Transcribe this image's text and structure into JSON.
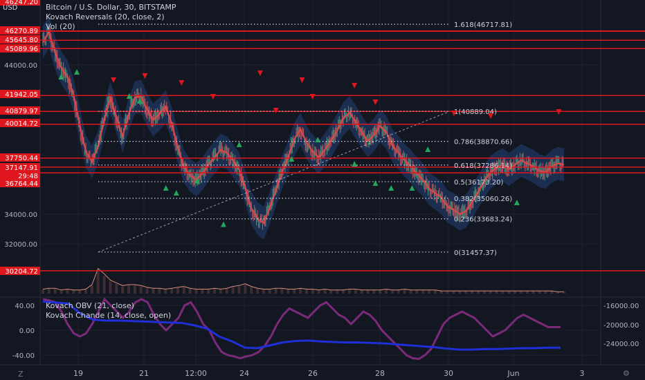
{
  "header": {
    "currency": "USD",
    "symbol_line": "Bitcoin / U.S. Dollar, 30, BITSTAMP",
    "indicator_1": "Kovach Reversals (20, close, 2)",
    "indicator_2": "Vol (20)"
  },
  "lower_pane": {
    "indicator_1": "Kovach OBV (21, close)",
    "indicator_2": "Kovach Chande (14, close, open)",
    "left_ticks": [
      "40.00",
      "0.00",
      "-40.00"
    ],
    "right_ticks": [
      "-16000.00",
      "-20000.00",
      "-24000.00"
    ]
  },
  "footer": {
    "left_icon": "Z",
    "right_icon": "⚙"
  },
  "chart_data": {
    "type": "line",
    "symbol": "Bitcoin / U.S. Dollar",
    "interval": "30",
    "exchange": "BITSTAMP",
    "ylim": [
      30200,
      48250
    ],
    "y_ticks": [
      {
        "label": "44000.00",
        "value": 44000
      },
      {
        "label": "34000.00",
        "value": 34000
      },
      {
        "label": "32000.00",
        "value": 32000
      }
    ],
    "x_ticks": [
      "19",
      "21",
      "12:00",
      "24",
      "26",
      "28",
      "30",
      "Jun",
      "3"
    ],
    "price_lines": [
      {
        "label": "46247.20",
        "value": 46247.2
      },
      {
        "label": "46270.89",
        "value": 46270.89
      },
      {
        "label": "45645.80",
        "value": 45645.8
      },
      {
        "label": "45089.96",
        "value": 45089.96
      },
      {
        "label": "41942.05",
        "value": 41942.05
      },
      {
        "label": "40879.97",
        "value": 40879.97
      },
      {
        "label": "40014.72",
        "value": 40014.72
      },
      {
        "label": "37750.44",
        "value": 37750.44
      },
      {
        "label": "37147.91",
        "value": 37147.91
      },
      {
        "label": "36764.44",
        "value": 36764.44
      },
      {
        "label": "30204.72",
        "value": 30204.72
      }
    ],
    "countdown_label": "29:48",
    "fibonacci": [
      {
        "label": "1.618(46717.81)",
        "value": 46717.81
      },
      {
        "label": "1(40889.04)",
        "value": 40889.04
      },
      {
        "label": "0.786(38870.66)",
        "value": 38870.66
      },
      {
        "label": "0.618(37286.14)",
        "value": 37286.14
      },
      {
        "label": "0.5(36173.20)",
        "value": 36173.2
      },
      {
        "label": "0.382(35060.26)",
        "value": 35060.26
      },
      {
        "label": "0.236(33683.24)",
        "value": 33683.24
      },
      {
        "label": "0(31457.37)",
        "value": 31457.37
      }
    ],
    "price_series": [
      45500,
      46200,
      44800,
      43800,
      43200,
      42000,
      40000,
      38200,
      37500,
      38500,
      40300,
      41800,
      40500,
      39200,
      40700,
      41800,
      41900,
      41000,
      40300,
      40700,
      41200,
      40100,
      38500,
      37200,
      36600,
      36300,
      36700,
      37300,
      37800,
      38300,
      38100,
      37600,
      37000,
      35800,
      34400,
      33700,
      33400,
      34400,
      35600,
      36800,
      37800,
      39000,
      39700,
      38800,
      38200,
      37800,
      38300,
      38900,
      39600,
      40400,
      40800,
      40200,
      39500,
      38900,
      39300,
      39900,
      39500,
      38600,
      38100,
      37600,
      37200,
      36700,
      36300,
      35700,
      35400,
      35100,
      34500,
      34300,
      34000,
      34200,
      34800,
      35500,
      36200,
      36800,
      37100,
      37300,
      37000,
      37300,
      37600,
      37400,
      37200,
      36900,
      36800,
      37200,
      37400,
      37300
    ],
    "volume_series": [
      0.5,
      0.6,
      0.6,
      0.4,
      0.5,
      0.4,
      0.4,
      0.5,
      1,
      2.8,
      2.2,
      1.5,
      1.2,
      0.9,
      1,
      1,
      0.9,
      0.7,
      0.6,
      0.6,
      0.5,
      0.6,
      0.7,
      0.8,
      0.6,
      0.5,
      0.5,
      0.5,
      0.6,
      0.5,
      0.6,
      0.8,
      0.9,
      1.1,
      0.8,
      0.6,
      0.5,
      0.5,
      0.6,
      0.6,
      0.5,
      0.5,
      0.6,
      0.5,
      0.5,
      0.4,
      0.5,
      0.4,
      0.4,
      0.4,
      0.5,
      0.5,
      0.4,
      0.4,
      0.4,
      0.4,
      0.5,
      0.4,
      0.4,
      0.5,
      0.4,
      0.4,
      0.4,
      0.4,
      0.4,
      0.3,
      0.3,
      0.3,
      0.3,
      0.3,
      0.3,
      0.3,
      0.3,
      0.3,
      0.3,
      0.3,
      0.3,
      0.3,
      0.3,
      0.3,
      0.3,
      0.3,
      0.3,
      0.3,
      0.2,
      0.2
    ],
    "chande_series": [
      50,
      48,
      45,
      30,
      10,
      -5,
      -10,
      -5,
      10,
      30,
      50,
      40,
      30,
      20,
      30,
      45,
      50,
      45,
      25,
      10,
      0,
      10,
      20,
      40,
      45,
      30,
      10,
      0,
      -20,
      -35,
      -40,
      -42,
      -45,
      -42,
      -40,
      -35,
      -25,
      -10,
      10,
      25,
      35,
      30,
      25,
      20,
      30,
      40,
      45,
      35,
      25,
      20,
      10,
      20,
      30,
      25,
      15,
      0,
      -10,
      -20,
      -30,
      -40,
      -45,
      -46,
      -40,
      -30,
      -10,
      10,
      20,
      25,
      30,
      25,
      20,
      10,
      0,
      -10,
      -5,
      0,
      10,
      20,
      25,
      20,
      15,
      10,
      5,
      5,
      5
    ],
    "obv_series": [
      -15200,
      -15400,
      -15600,
      -17800,
      -19000,
      -19200,
      -19200,
      -19300,
      -19400,
      -19500,
      -19600,
      -19700,
      -20200,
      -20900,
      -22600,
      -23600,
      -24900,
      -25000,
      -24400,
      -23800,
      -23500,
      -23400,
      -23600,
      -23700,
      -23800,
      -23800,
      -23900,
      -24000,
      -24200,
      -24400,
      -24600,
      -24800,
      -25100,
      -25300,
      -25300,
      -25200,
      -25200,
      -25100,
      -25000,
      -25000,
      -24900,
      -24900
    ],
    "reversal_up": [
      [
        0.04,
        0.26
      ],
      [
        0.07,
        0.24
      ],
      [
        0.17,
        0.34
      ],
      [
        0.19,
        0.36
      ],
      [
        0.24,
        0.72
      ],
      [
        0.26,
        0.74
      ],
      [
        0.3,
        0.69
      ],
      [
        0.35,
        0.87
      ],
      [
        0.38,
        0.54
      ],
      [
        0.48,
        0.6
      ],
      [
        0.53,
        0.52
      ],
      [
        0.6,
        0.62
      ],
      [
        0.64,
        0.7
      ],
      [
        0.67,
        0.72
      ],
      [
        0.71,
        0.72
      ],
      [
        0.74,
        0.56
      ],
      [
        0.91,
        0.78
      ]
    ],
    "reversal_down": [
      [
        0.14,
        0.48
      ],
      [
        0.2,
        0.45
      ],
      [
        0.27,
        0.5
      ],
      [
        0.33,
        0.6
      ],
      [
        0.42,
        0.43
      ],
      [
        0.45,
        0.7
      ],
      [
        0.5,
        0.48
      ],
      [
        0.52,
        0.6
      ],
      [
        0.6,
        0.52
      ],
      [
        0.64,
        0.64
      ],
      [
        0.79,
        0.72
      ],
      [
        0.86,
        0.74
      ],
      [
        0.99,
        0.71
      ]
    ]
  },
  "colors": {
    "background": "#131722",
    "grid": "#1e222d",
    "axis_text": "#b2b5be",
    "price_line": "#e0161e",
    "price_tag_bg": "#e0161e",
    "fib_line": "#d1d4dc",
    "ma_line": "#e04848",
    "band_fill": "#1f3358",
    "up_marker": "#26a65b",
    "down_marker": "#e0161e",
    "chande_line": "#7b2a7b",
    "obv_line": "#1f2fd9",
    "volume_line": "#d98d7a",
    "candle_up": "#4a8a78",
    "candle_down": "#b0505a"
  }
}
